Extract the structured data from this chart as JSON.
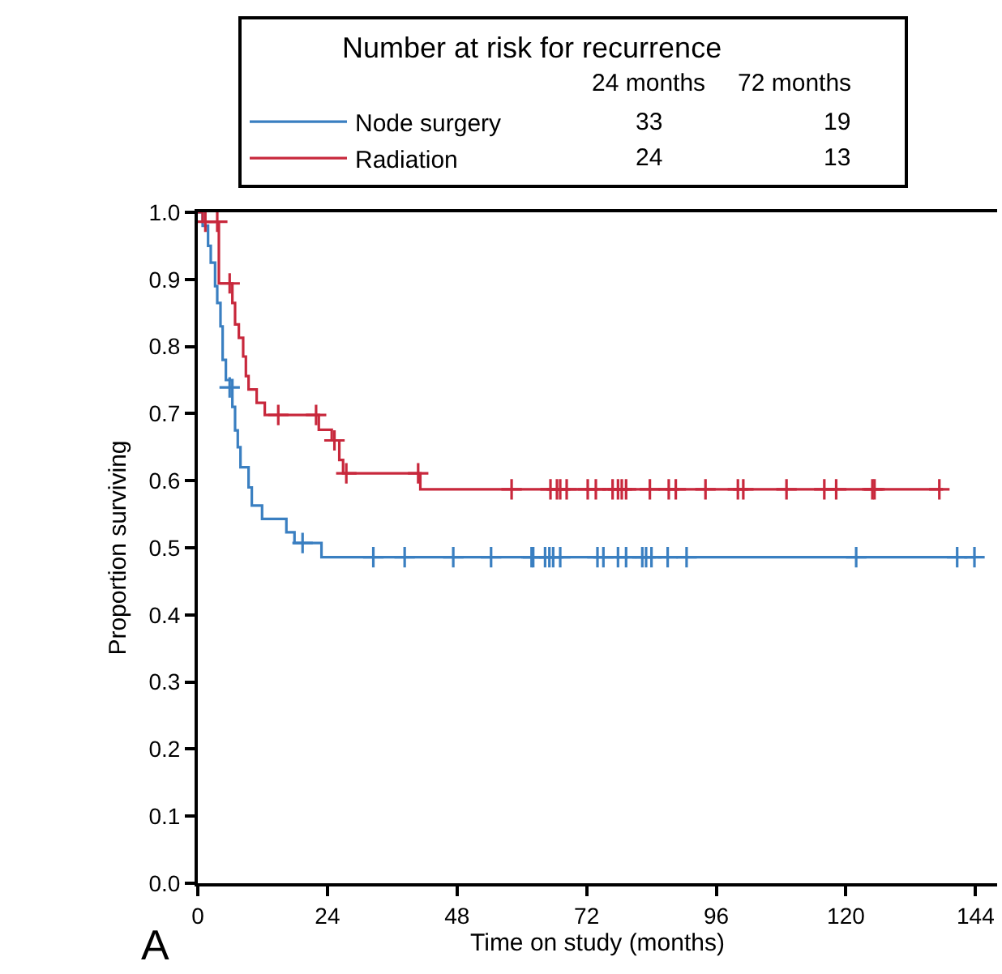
{
  "chart_data": {
    "type": "step",
    "xlabel": "Time on study (months)",
    "ylabel": "Proportion surviving",
    "legend_title": "Number at risk for recurrence",
    "legend": "top",
    "xlim": [
      0,
      148
    ],
    "xticks": [
      0,
      24,
      48,
      72,
      96,
      120,
      144
    ],
    "ylim": [
      0,
      1
    ],
    "yticks": [
      {
        "value": 0,
        "label": "0.0"
      },
      {
        "value": 0.1,
        "label": "0.1"
      },
      {
        "value": 0.2,
        "label": "0.2"
      },
      {
        "value": 0.3,
        "label": "0.3"
      },
      {
        "value": 0.4,
        "label": "0.4"
      },
      {
        "value": 0.5,
        "label": "0.5"
      },
      {
        "value": 0.6,
        "label": "0.6"
      },
      {
        "value": 0.7,
        "label": "0.7"
      },
      {
        "value": 0.8,
        "label": "0.8"
      },
      {
        "value": 0.9,
        "label": "0.9"
      },
      {
        "value": 1,
        "label": "1.0"
      }
    ],
    "series": [
      {
        "name": "Node surgery",
        "marker": "none",
        "color": "#3a7fc1",
        "x": [
          0,
          0.9,
          1.9,
          2.4,
          3.2,
          3.6,
          4.2,
          4.6,
          5.2,
          6.4,
          6.9,
          7.4,
          7.9,
          9.4,
          10.0,
          11.9,
          16.4,
          17.9,
          22.9,
          143.8
        ],
        "values": [
          1.0,
          0.98,
          0.95,
          0.925,
          0.89,
          0.865,
          0.83,
          0.78,
          0.75,
          0.71,
          0.675,
          0.65,
          0.62,
          0.59,
          0.563,
          0.543,
          0.523,
          0.507,
          0.486,
          0.486
        ]
      },
      {
        "name": "Radiation",
        "marker": "none",
        "color": "#c8283c",
        "x": [
          0,
          0.9,
          3.9,
          6.4,
          6.9,
          7.6,
          8.4,
          8.9,
          9.4,
          10.9,
          12.4,
          22.4,
          24.8,
          26.2,
          26.9,
          41.2,
          138
        ],
        "values": [
          1.0,
          0.986,
          0.894,
          0.865,
          0.833,
          0.813,
          0.785,
          0.756,
          0.736,
          0.716,
          0.698,
          0.676,
          0.66,
          0.631,
          0.611,
          0.587,
          0.587
        ]
      },
      {
        "type": "scatter",
        "marker": "cross",
        "color": "#3a7fc1",
        "x": [
          5.9,
          19.4,
          32.5,
          38.3,
          47.3,
          54.3,
          61.8,
          62.1,
          64.3,
          65.1,
          65.8,
          67.1,
          74.0,
          75.1,
          77.8,
          79.3,
          82.3,
          83.0,
          84.0,
          87.0,
          90.5,
          121.9,
          140.6,
          143.8
        ],
        "values": [
          0.739,
          0.507,
          0.486,
          0.486,
          0.486,
          0.486,
          0.486,
          0.486,
          0.486,
          0.486,
          0.486,
          0.486,
          0.486,
          0.486,
          0.486,
          0.486,
          0.486,
          0.486,
          0.486,
          0.486,
          0.486,
          0.486,
          0.486,
          0.486
        ]
      },
      {
        "type": "scatter",
        "marker": "cross",
        "color": "#c8283c",
        "x": [
          1.4,
          3.6,
          5.9,
          14.9,
          21.9,
          25.3,
          27.5,
          40.8,
          58.1,
          65.3,
          66.5,
          67.1,
          68.3,
          72.2,
          73.7,
          76.8,
          77.8,
          78.5,
          79.3,
          83.7,
          87.2,
          88.5,
          94.0,
          100.0,
          101.0,
          109.0,
          116.0,
          118.2,
          124.9,
          125.3,
          137.3
        ],
        "values": [
          0.986,
          0.986,
          0.894,
          0.698,
          0.698,
          0.66,
          0.611,
          0.611,
          0.587,
          0.587,
          0.587,
          0.587,
          0.587,
          0.587,
          0.587,
          0.587,
          0.587,
          0.587,
          0.587,
          0.587,
          0.587,
          0.587,
          0.587,
          0.587,
          0.587,
          0.587,
          0.587,
          0.587,
          0.587,
          0.587,
          0.587
        ]
      }
    ],
    "annotations": [
      "24 months",
      "72 months",
      "33",
      "19",
      "24",
      "13",
      "A"
    ]
  }
}
